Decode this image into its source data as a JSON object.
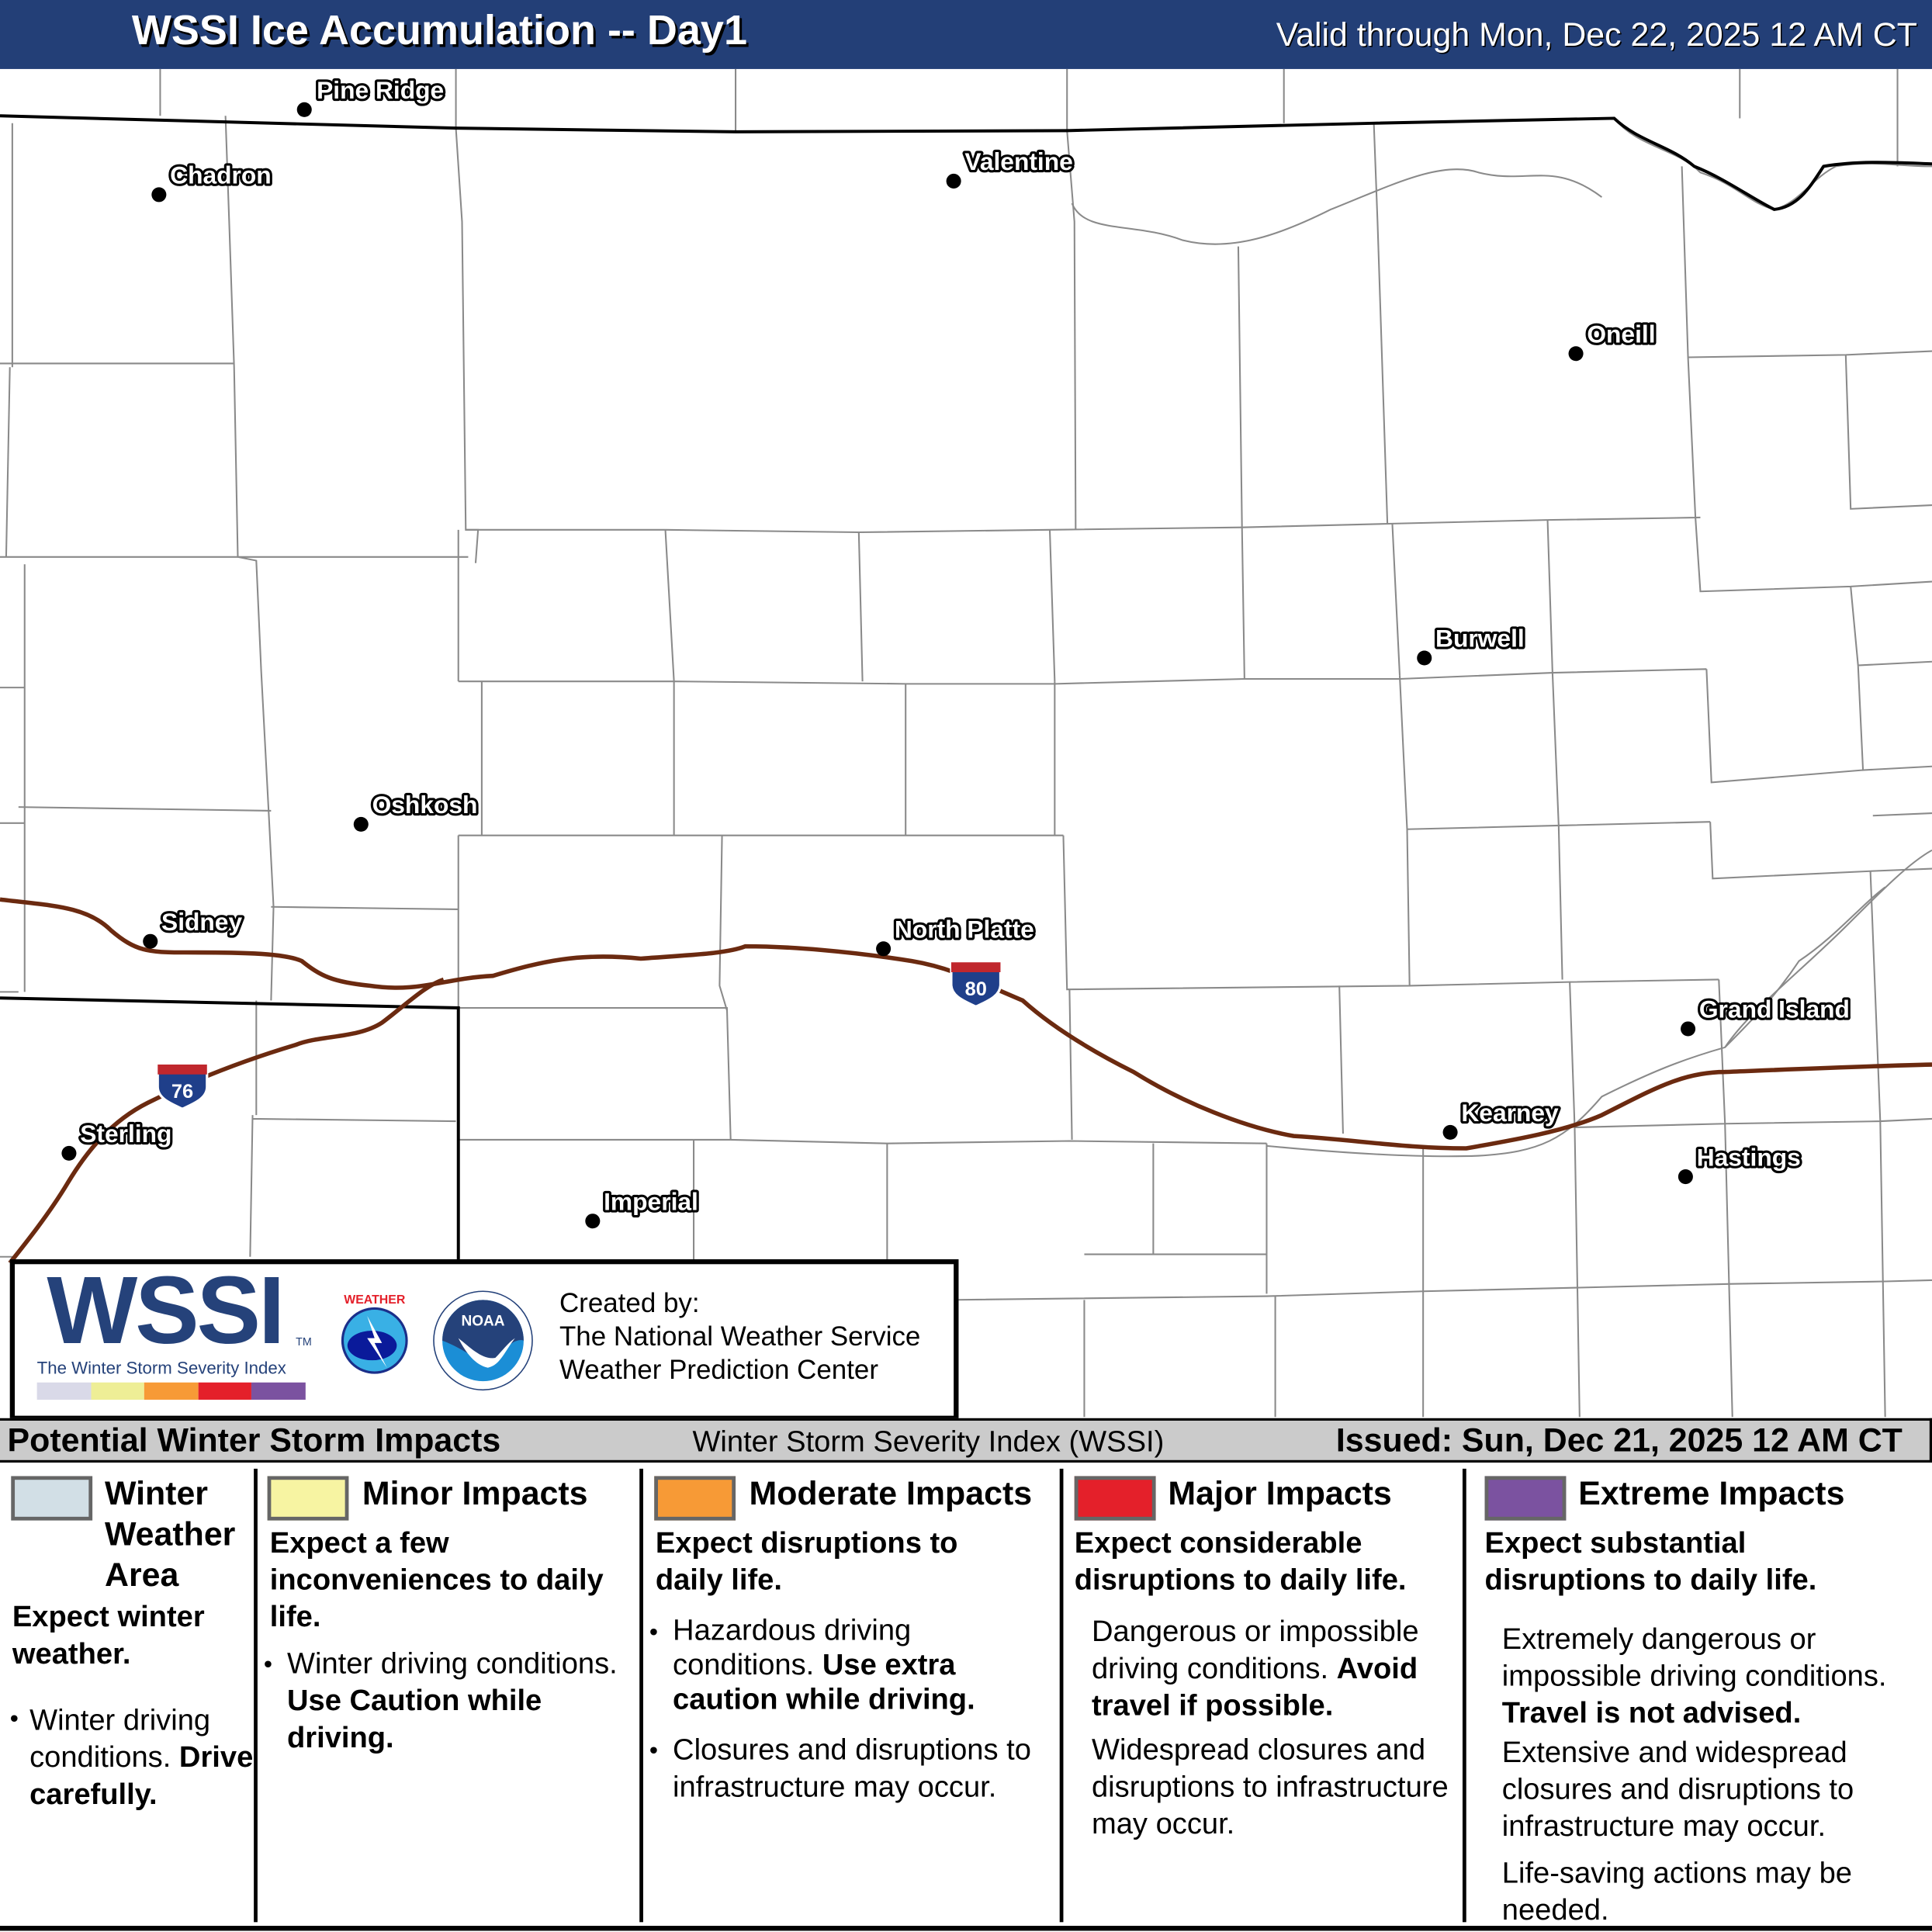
{
  "header": {
    "title": "WSSI Ice Accumulation -- Day1",
    "valid": "Valid through Mon, Dec 22, 2025 12 AM CT",
    "background": "#233f77"
  },
  "map": {
    "cities": [
      {
        "name": "Pine Ridge"
      },
      {
        "name": "Chadron"
      },
      {
        "name": "Valentine"
      },
      {
        "name": "Oneill"
      },
      {
        "name": "Burwell"
      },
      {
        "name": "Oshkosh"
      },
      {
        "name": "Sidney"
      },
      {
        "name": "North Platte"
      },
      {
        "name": "Grand Island"
      },
      {
        "name": "Kearney"
      },
      {
        "name": "Hastings"
      },
      {
        "name": "Sterling"
      },
      {
        "name": "Imperial"
      }
    ],
    "interstates": [
      {
        "shield": "80"
      },
      {
        "shield": "76"
      }
    ],
    "interstate_color": "#6b2a10"
  },
  "logo": {
    "wssi": "WSSI",
    "tm": "TM",
    "subtitle": "The Winter Storm Severity Index",
    "nws": "NATIONAL WEATHER SERVICE",
    "noaa": "NOAA",
    "created_by": "Created by:",
    "org1": "The National Weather Service",
    "org2": "Weather Prediction Center",
    "bar_colors": [
      "#d9d9e8",
      "#eeee96",
      "#f79a36",
      "#e4202a",
      "#7b52a0"
    ]
  },
  "legend_bar": {
    "left": "Potential Winter Storm Impacts",
    "mid": "Winter Storm Severity Index (WSSI)",
    "right": "Issued: Sun, Dec 21, 2025 12 AM CT"
  },
  "categories": [
    {
      "title": "Winter Weather Area",
      "color": "#d2dfe6",
      "summary": "Expect winter weather.",
      "bullet1": "Winter driving conditions.",
      "bullet1_bold": "Drive carefully."
    },
    {
      "title": "Minor Impacts",
      "color": "#f7f4a2",
      "summary": "Expect a few inconveniences to daily life.",
      "bullet1": "Winter driving conditions.",
      "bullet1_bold": "Use Caution while driving."
    },
    {
      "title": "Moderate Impacts",
      "color": "#f79a36",
      "summary": "Expect disruptions to daily life.",
      "bullet1": "Hazardous driving conditions.",
      "bullet1_bold": "Use extra caution while driving.",
      "bullet2": "Closures and disruptions to infrastructure may occur."
    },
    {
      "title": "Major Impacts",
      "color": "#e4202a",
      "summary": "Expect considerable disruptions to daily life.",
      "p1": "Dangerous or impossible driving conditions.",
      "p1_bold": "Avoid travel if possible.",
      "p2": "Widespread closures and disruptions to infrastructure may occur."
    },
    {
      "title": "Extreme Impacts",
      "color": "#7b52a0",
      "summary": "Expect substantial disruptions to daily life.",
      "p1": "Extremely dangerous or impossible driving conditions.",
      "p1_bold": "Travel is not advised.",
      "p2": "Extensive and widespread closures and disruptions to infrastructure may occur.",
      "p3": "Life-saving actions may be needed."
    }
  ]
}
